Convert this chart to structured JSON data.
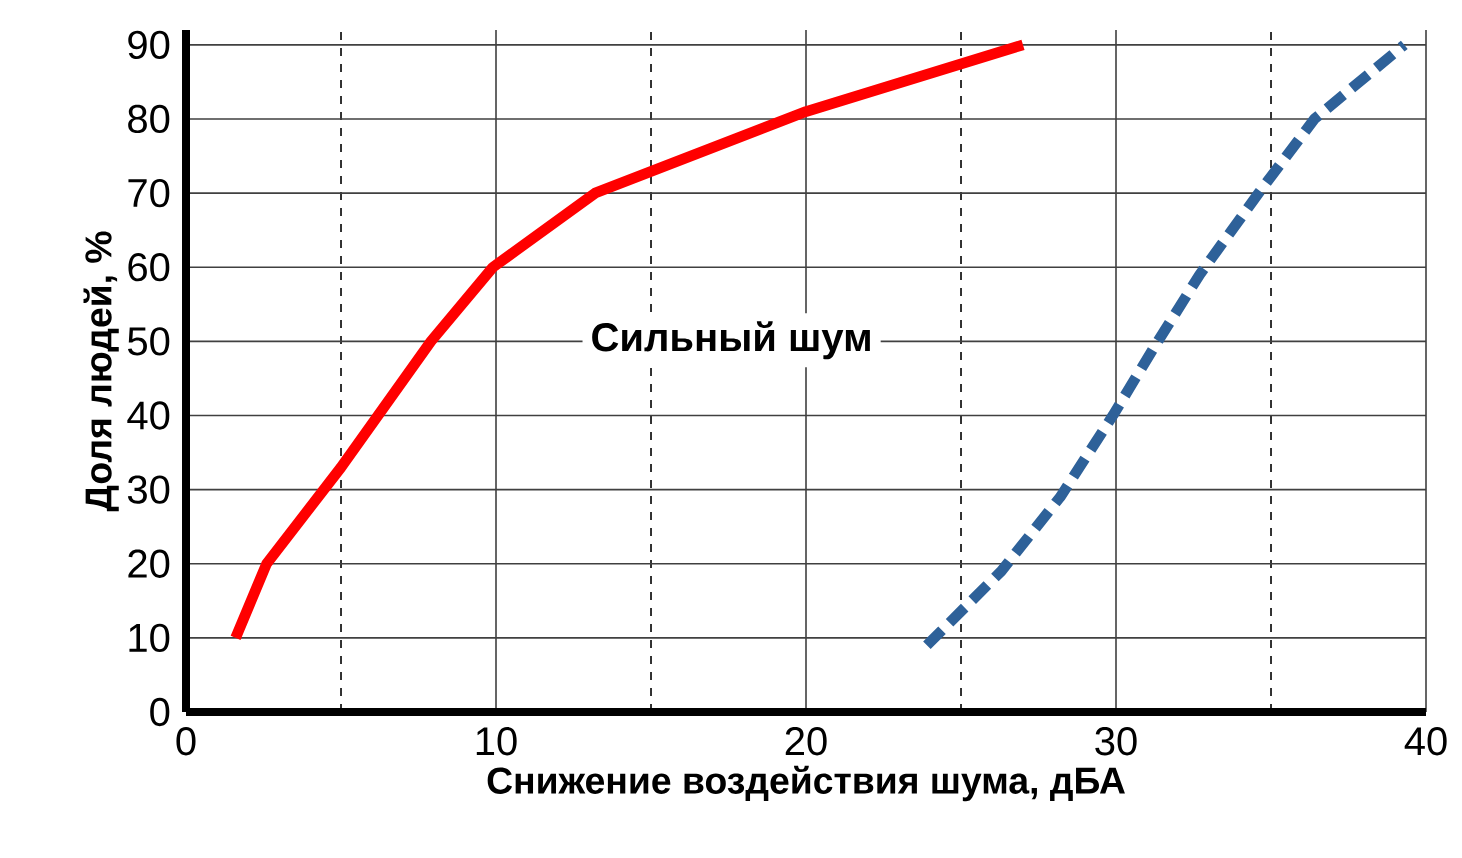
{
  "chart_data": {
    "type": "line",
    "xlabel": "Снижение воздействия шума, дБА",
    "ylabel": "Доля людей, %",
    "annotations": [
      "Сильный шум"
    ],
    "xlim": [
      0,
      40
    ],
    "xticks": [
      0,
      10,
      20,
      30,
      40
    ],
    "ylim": [
      0,
      92
    ],
    "yticks": [
      0,
      10,
      20,
      30,
      40,
      50,
      60,
      70,
      80,
      90
    ],
    "grid": true,
    "marker": "none",
    "series": [
      {
        "color": "#ff0000",
        "line_style": "solid",
        "x": [
          1.6,
          2.6,
          5.0,
          7.9,
          9.9,
          13.2,
          20,
          27
        ],
        "values": [
          10,
          20,
          33,
          50,
          60,
          70,
          81,
          90
        ]
      },
      {
        "color": "#2e6199",
        "line_style": "dashed",
        "x": [
          23.9,
          26.3,
          28.2,
          29.9,
          31.2,
          32.7,
          34.6,
          36.4,
          39.3
        ],
        "values": [
          9,
          19,
          29,
          40,
          49,
          59,
          70,
          80,
          90
        ]
      }
    ]
  }
}
